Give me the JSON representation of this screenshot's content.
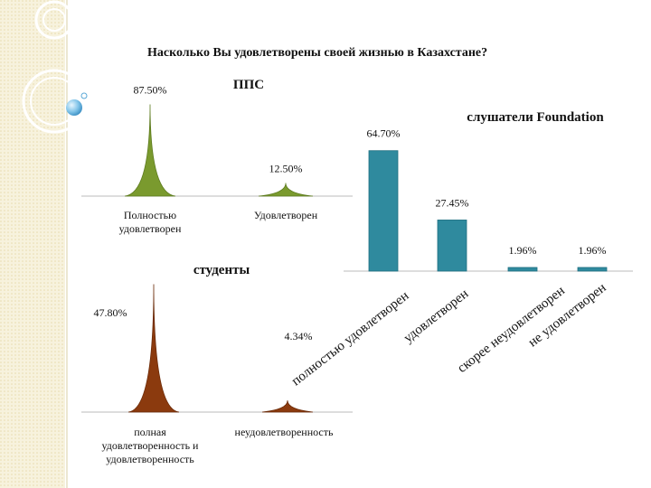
{
  "slide_title": "Насколько Вы удовлетворены своей жизнью в Казахстане?",
  "colors": {
    "green": "#7a9a2e",
    "brown": "#8b3a0e",
    "teal": "#2f8a9e",
    "sidebar": "#f2ecd2"
  },
  "chart_data": [
    {
      "type": "bar",
      "title": "ППС",
      "categories": [
        "Полностью удовлетворен",
        "Удовлетворен"
      ],
      "series": [
        {
          "values": [
            87.5,
            12.5
          ]
        }
      ],
      "data_labels": [
        "87.50%",
        "12.50%"
      ],
      "shape": "cone"
    },
    {
      "type": "bar",
      "title": "слушатели Foundation",
      "categories": [
        "полностью удовлетворен",
        "удовлетворен",
        "скорее неудовлетворен",
        "не удовлетворен"
      ],
      "series": [
        {
          "values": [
            64.7,
            27.45,
            1.96,
            1.96
          ]
        }
      ],
      "data_labels": [
        "64.70%",
        "27.45%",
        "1.96%",
        "1.96%"
      ]
    },
    {
      "type": "bar",
      "title": "студенты",
      "categories": [
        "полная удовлетворенность и удовлетворенность",
        "неудовлетворенность"
      ],
      "series": [
        {
          "values": [
            47.8,
            4.34
          ]
        }
      ],
      "data_labels": [
        "47.80%",
        "4.34%"
      ],
      "shape": "cone"
    }
  ]
}
